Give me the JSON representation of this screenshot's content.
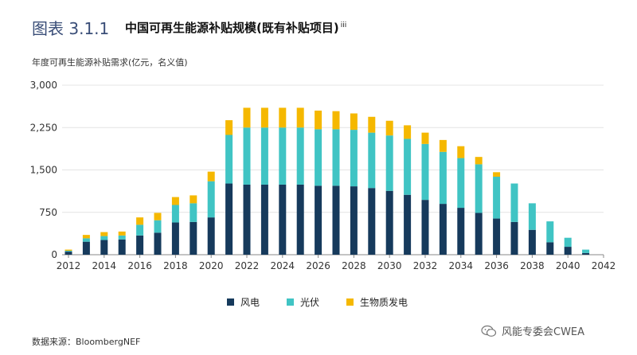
{
  "header": {
    "fig_num": "图表 3.1.1",
    "title": "中国可再生能源补贴规模(既有补贴项目)",
    "title_sup": "iii"
  },
  "source": "数据来源：BloombergNEF",
  "watermark": "风能专委会CWEA",
  "colors": {
    "wind": "#163a5c",
    "solar": "#40c4c4",
    "bio": "#f5b800",
    "grid": "#e4e4e4",
    "axis": "#888888"
  },
  "chart_data": {
    "type": "bar",
    "stacked": true,
    "ylabel": "年度可再生能源补贴需求(亿元，名义值)",
    "ylim": [
      0,
      3000
    ],
    "yticks": [
      0,
      750,
      1500,
      2250,
      3000
    ],
    "ytick_labels": [
      "0",
      "750",
      "1,500",
      "2,250",
      "3,000"
    ],
    "xtick_labels": [
      "2012",
      "2014",
      "2016",
      "2018",
      "2020",
      "2022",
      "2024",
      "2026",
      "2028",
      "2030",
      "2032",
      "2034",
      "2036",
      "2038",
      "2040",
      "2042"
    ],
    "grid": true,
    "legend_position": "bottom",
    "x": [
      2012,
      2013,
      2014,
      2015,
      2016,
      2017,
      2018,
      2019,
      2020,
      2021,
      2022,
      2023,
      2024,
      2025,
      2026,
      2027,
      2028,
      2029,
      2030,
      2031,
      2032,
      2033,
      2034,
      2035,
      2036,
      2037,
      2038,
      2039,
      2040,
      2041,
      2042
    ],
    "series": [
      {
        "name": "风电",
        "color": "#163a5c",
        "values": [
          55,
          230,
          260,
          270,
          340,
          390,
          570,
          580,
          660,
          1260,
          1240,
          1240,
          1240,
          1240,
          1220,
          1220,
          1210,
          1180,
          1130,
          1060,
          970,
          900,
          830,
          740,
          640,
          580,
          440,
          220,
          140,
          30,
          0
        ]
      },
      {
        "name": "光伏",
        "color": "#40c4c4",
        "values": [
          15,
          60,
          70,
          70,
          190,
          220,
          310,
          330,
          640,
          860,
          1010,
          1010,
          1010,
          1010,
          1000,
          1000,
          1000,
          980,
          980,
          990,
          990,
          920,
          880,
          860,
          740,
          680,
          470,
          370,
          160,
          60,
          0
        ]
      },
      {
        "name": "生物质发电",
        "color": "#f5b800",
        "values": [
          20,
          60,
          70,
          70,
          130,
          130,
          140,
          140,
          170,
          260,
          350,
          350,
          350,
          350,
          330,
          320,
          290,
          280,
          260,
          240,
          200,
          210,
          210,
          130,
          80,
          0,
          0,
          0,
          0,
          0,
          0
        ]
      }
    ]
  }
}
